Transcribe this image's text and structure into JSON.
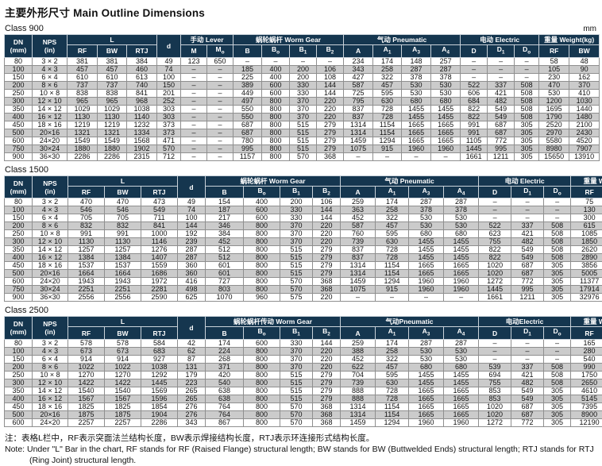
{
  "page": {
    "title": "主要外形尺寸 Main Outline Dimensions",
    "unit_label": "mm",
    "note_cn": "注：表格L栏中，RF表示突面法兰结构长度，BW表示焊接结构长度，RTJ表示环连接形式结构长度。",
    "note_en_line1": "Note: Under \"L\" Bar in the chart, RF stands for RF (Raised Flange) structural length; BW stands for BW (Buttwelded Ends) structural length; RTJ stands for RTJ",
    "note_en_line2": "(Ring Joint) structural length."
  },
  "colors": {
    "header_bg": "#15364F",
    "header_text": "#FFFFFF",
    "stripe": "#CBCBCB",
    "grid": "#8F8F8F"
  },
  "tables": [
    {
      "label": "Class 900",
      "header": {
        "groups": [
          {
            "label": "DN\n(mm)",
            "rows": 2
          },
          {
            "label": "NPS\n(in)",
            "rows": 2
          },
          {
            "label": "L",
            "cols": 3
          },
          {
            "label": "d",
            "rows": 2
          },
          {
            "label": "手动 Lever",
            "cols": 2
          },
          {
            "label": "蜗轮蜗杆 Worm Gear",
            "cols": 4
          },
          {
            "label": "气动 Pneumatic",
            "cols": 4
          },
          {
            "label": "电动 Electric",
            "cols": 3
          },
          {
            "label": "重量 Weight(kg)",
            "cols": 2
          }
        ],
        "sub": [
          "RF",
          "BW",
          "RTJ",
          "M",
          "M_o",
          "B",
          "B_o",
          "B_1",
          "B_2",
          "A",
          "A_1",
          "A_3",
          "A_4",
          "D",
          "D_1",
          "D_o",
          "RF",
          "BW"
        ]
      },
      "rows": [
        [
          "80",
          "3 × 2",
          "381",
          "381",
          "384",
          "49",
          "123",
          "650",
          "–",
          "–",
          "–",
          "–",
          "234",
          "174",
          "148",
          "257",
          "–",
          "–",
          "–",
          "58",
          "48"
        ],
        [
          "100",
          "4 × 3",
          "457",
          "457",
          "460",
          "74",
          "–",
          "–",
          "185",
          "400",
          "200",
          "106",
          "343",
          "258",
          "287",
          "287",
          "–",
          "–",
          "–",
          "105",
          "90"
        ],
        [
          "150",
          "6 × 4",
          "610",
          "610",
          "613",
          "100",
          "–",
          "–",
          "225",
          "400",
          "200",
          "108",
          "427",
          "322",
          "378",
          "378",
          "–",
          "–",
          "–",
          "230",
          "162"
        ],
        [
          "200",
          "8 × 6",
          "737",
          "737",
          "740",
          "150",
          "–",
          "–",
          "389",
          "600",
          "330",
          "144",
          "587",
          "457",
          "530",
          "530",
          "522",
          "337",
          "508",
          "470",
          "370"
        ],
        [
          "250",
          "10 × 8",
          "838",
          "838",
          "841",
          "201",
          "–",
          "–",
          "449",
          "600",
          "330",
          "144",
          "725",
          "595",
          "530",
          "530",
          "606",
          "421",
          "508",
          "530",
          "410"
        ],
        [
          "300",
          "12 × 10",
          "965",
          "965",
          "968",
          "252",
          "–",
          "–",
          "497",
          "800",
          "370",
          "220",
          "795",
          "630",
          "680",
          "680",
          "684",
          "482",
          "508",
          "1200",
          "1030"
        ],
        [
          "350",
          "14 × 12",
          "1029",
          "1029",
          "1038",
          "303",
          "–",
          "–",
          "550",
          "800",
          "370",
          "220",
          "837",
          "728",
          "1455",
          "1455",
          "822",
          "549",
          "508",
          "1695",
          "1440"
        ],
        [
          "400",
          "16 × 12",
          "1130",
          "1130",
          "1140",
          "303",
          "–",
          "–",
          "550",
          "800",
          "370",
          "220",
          "837",
          "728",
          "1455",
          "1455",
          "822",
          "549",
          "508",
          "1790",
          "1480"
        ],
        [
          "450",
          "18 × 16",
          "1219",
          "1219",
          "1232",
          "373",
          "–",
          "–",
          "687",
          "800",
          "515",
          "279",
          "1314",
          "1154",
          "1665",
          "1665",
          "991",
          "687",
          "305",
          "2520",
          "2100"
        ],
        [
          "500",
          "20×16",
          "1321",
          "1321",
          "1334",
          "373",
          "–",
          "–",
          "687",
          "800",
          "515",
          "279",
          "1314",
          "1154",
          "1665",
          "1665",
          "991",
          "687",
          "305",
          "2970",
          "2430"
        ],
        [
          "600",
          "24×20",
          "1549",
          "1549",
          "1568",
          "471",
          "–",
          "–",
          "780",
          "800",
          "515",
          "279",
          "1459",
          "1294",
          "1665",
          "1665",
          "1105",
          "772",
          "305",
          "5580",
          "4520"
        ],
        [
          "750",
          "30×24",
          "1880",
          "1880",
          "1902",
          "570",
          "–",
          "–",
          "995",
          "800",
          "515",
          "279",
          "1075",
          "915",
          "1960",
          "1960",
          "1445",
          "995",
          "305",
          "8980",
          "7907"
        ],
        [
          "900",
          "36×30",
          "2286",
          "2286",
          "2315",
          "712",
          "–",
          "–",
          "1157",
          "800",
          "570",
          "368",
          "–",
          "–",
          "–",
          "–",
          "1661",
          "1211",
          "305",
          "15650",
          "13910"
        ]
      ]
    },
    {
      "label": "Class 1500",
      "header": {
        "groups": [
          {
            "label": "DN\n(mm)",
            "rows": 2
          },
          {
            "label": "NPS\n(in)",
            "rows": 2
          },
          {
            "label": "L",
            "cols": 3
          },
          {
            "label": "d",
            "rows": 2
          },
          {
            "label": "蜗轮蜗杆 Worm Gear",
            "cols": 4
          },
          {
            "label": "气动 Pneumatic",
            "cols": 4
          },
          {
            "label": "电动 Electric",
            "cols": 3
          },
          {
            "label": "重量 Weight(kg)",
            "cols": 2
          }
        ],
        "sub": [
          "RF",
          "BW",
          "RTJ",
          "B",
          "B_o",
          "B_1",
          "B_2",
          "A",
          "A_1",
          "A_3",
          "A_4",
          "D",
          "D_1",
          "D_o",
          "RF",
          "BW"
        ]
      },
      "rows": [
        [
          "80",
          "3 × 2",
          "470",
          "470",
          "473",
          "49",
          "154",
          "400",
          "200",
          "106",
          "259",
          "174",
          "287",
          "287",
          "–",
          "–",
          "–",
          "75",
          "49"
        ],
        [
          "100",
          "4 × 3",
          "546",
          "546",
          "549",
          "74",
          "187",
          "600",
          "330",
          "144",
          "363",
          "258",
          "378",
          "378",
          "–",
          "–",
          "–",
          "130",
          "73"
        ],
        [
          "150",
          "6 × 4",
          "705",
          "705",
          "711",
          "100",
          "217",
          "600",
          "330",
          "144",
          "452",
          "322",
          "530",
          "530",
          "–",
          "–",
          "–",
          "300",
          "181"
        ],
        [
          "200",
          "8 × 6",
          "832",
          "832",
          "841",
          "144",
          "346",
          "800",
          "370",
          "220",
          "587",
          "457",
          "530",
          "530",
          "522",
          "337",
          "508",
          "615",
          "491"
        ],
        [
          "250",
          "10 × 8",
          "991",
          "991",
          "1000",
          "192",
          "384",
          "800",
          "370",
          "220",
          "760",
          "595",
          "680",
          "680",
          "623",
          "421",
          "508",
          "1085",
          "879"
        ],
        [
          "300",
          "12 × 10",
          "1130",
          "1130",
          "1146",
          "239",
          "452",
          "800",
          "370",
          "220",
          "739",
          "630",
          "1455",
          "1455",
          "755",
          "482",
          "508",
          "1850",
          "1547"
        ],
        [
          "350",
          "14 × 12",
          "1257",
          "1257",
          "1276",
          "287",
          "512",
          "800",
          "515",
          "279",
          "837",
          "728",
          "1455",
          "1455",
          "822",
          "549",
          "508",
          "2620",
          "2214"
        ],
        [
          "400",
          "16 × 12",
          "1384",
          "1384",
          "1407",
          "287",
          "512",
          "800",
          "515",
          "279",
          "837",
          "728",
          "1455",
          "1455",
          "822",
          "549",
          "508",
          "2890",
          "2365"
        ],
        [
          "450",
          "18 × 16",
          "1537",
          "1537",
          "1559",
          "360",
          "601",
          "800",
          "515",
          "279",
          "1314",
          "1154",
          "1665",
          "1665",
          "1020",
          "687",
          "305",
          "3856",
          "3156"
        ],
        [
          "500",
          "20×16",
          "1664",
          "1664",
          "1686",
          "360",
          "601",
          "800",
          "515",
          "279",
          "1314",
          "1154",
          "1665",
          "1665",
          "1020",
          "687",
          "305",
          "5005",
          "4105"
        ],
        [
          "600",
          "24×20",
          "1943",
          "1943",
          "1972",
          "416",
          "727",
          "800",
          "570",
          "368",
          "1459",
          "1294",
          "1960",
          "1960",
          "1272",
          "772",
          "305",
          "11377",
          "9980"
        ],
        [
          "750",
          "30×24",
          "2251",
          "2251",
          "2281",
          "498",
          "803",
          "800",
          "570",
          "368",
          "1075",
          "915",
          "1960",
          "1960",
          "1445",
          "995",
          "305",
          "17914",
          "14660"
        ],
        [
          "900",
          "36×30",
          "2556",
          "2556",
          "2590",
          "625",
          "1070",
          "960",
          "575",
          "220",
          "–",
          "–",
          "–",
          "–",
          "1661",
          "1211",
          "305",
          "32976",
          "27743"
        ]
      ]
    },
    {
      "label": "Class 2500",
      "header": {
        "groups": [
          {
            "label": "DN\n(mm)",
            "rows": 2
          },
          {
            "label": "NPS\n(in)",
            "rows": 2
          },
          {
            "label": "L",
            "cols": 3
          },
          {
            "label": "d",
            "rows": 2
          },
          {
            "label": "蜗轮蜗杆传动 Worm Gear",
            "cols": 4
          },
          {
            "label": "气动Pneumatic",
            "cols": 4
          },
          {
            "label": "电动Electric",
            "cols": 3
          },
          {
            "label": "重量 Weight(kg)",
            "cols": 2
          }
        ],
        "sub": [
          "RF",
          "BW",
          "RTJ",
          "B",
          "B_o",
          "B_1",
          "B_2",
          "A",
          "A_1",
          "A_3",
          "A_4",
          "D",
          "D_1",
          "D_o",
          "RF",
          "BW"
        ]
      },
      "rows": [
        [
          "80",
          "3 × 2",
          "578",
          "578",
          "584",
          "42",
          "174",
          "600",
          "330",
          "144",
          "259",
          "174",
          "287",
          "287",
          "–",
          "–",
          "–",
          "165",
          "111"
        ],
        [
          "100",
          "4 × 3",
          "673",
          "673",
          "683",
          "62",
          "224",
          "800",
          "370",
          "220",
          "388",
          "258",
          "530",
          "530",
          "–",
          "–",
          "–",
          "280",
          "166"
        ],
        [
          "150",
          "6 × 4",
          "914",
          "914",
          "927",
          "87",
          "268",
          "800",
          "370",
          "220",
          "452",
          "322",
          "530",
          "530",
          "–",
          "–",
          "–",
          "540",
          "302"
        ],
        [
          "200",
          "8 × 6",
          "1022",
          "1022",
          "1038",
          "131",
          "371",
          "800",
          "370",
          "220",
          "622",
          "457",
          "680",
          "680",
          "539",
          "337",
          "508",
          "990",
          "860"
        ],
        [
          "250",
          "10 × 8",
          "1270",
          "1270",
          "1292",
          "179",
          "420",
          "800",
          "515",
          "279",
          "704",
          "595",
          "1455",
          "1455",
          "694",
          "421",
          "508",
          "1750",
          "1270"
        ],
        [
          "300",
          "12 × 10",
          "1422",
          "1422",
          "1445",
          "223",
          "540",
          "800",
          "515",
          "279",
          "739",
          "630",
          "1455",
          "1455",
          "755",
          "482",
          "508",
          "2650",
          "1920"
        ],
        [
          "350",
          "14 × 12",
          "1540",
          "1540",
          "1569",
          "265",
          "638",
          "800",
          "515",
          "279",
          "888",
          "728",
          "1665",
          "1665",
          "853",
          "549",
          "305",
          "4610",
          "3855"
        ],
        [
          "400",
          "16 × 12",
          "1567",
          "1567",
          "1596",
          "265",
          "638",
          "800",
          "515",
          "279",
          "888",
          "728",
          "1665",
          "1665",
          "853",
          "549",
          "305",
          "5145",
          "4295"
        ],
        [
          "450",
          "18 × 16",
          "1825",
          "1825",
          "1854",
          "276",
          "764",
          "800",
          "570",
          "368",
          "1314",
          "1154",
          "1665",
          "1665",
          "1020",
          "687",
          "305",
          "7395",
          "6170"
        ],
        [
          "500",
          "20×16",
          "1875",
          "1875",
          "1904",
          "276",
          "764",
          "800",
          "570",
          "368",
          "1314",
          "1154",
          "1665",
          "1665",
          "1020",
          "687",
          "305",
          "8900",
          "7430"
        ],
        [
          "600",
          "24×20",
          "2257",
          "2257",
          "2286",
          "343",
          "867",
          "800",
          "570",
          "368",
          "1459",
          "1294",
          "1960",
          "1960",
          "1272",
          "772",
          "305",
          "12190",
          "10440"
        ]
      ]
    }
  ]
}
